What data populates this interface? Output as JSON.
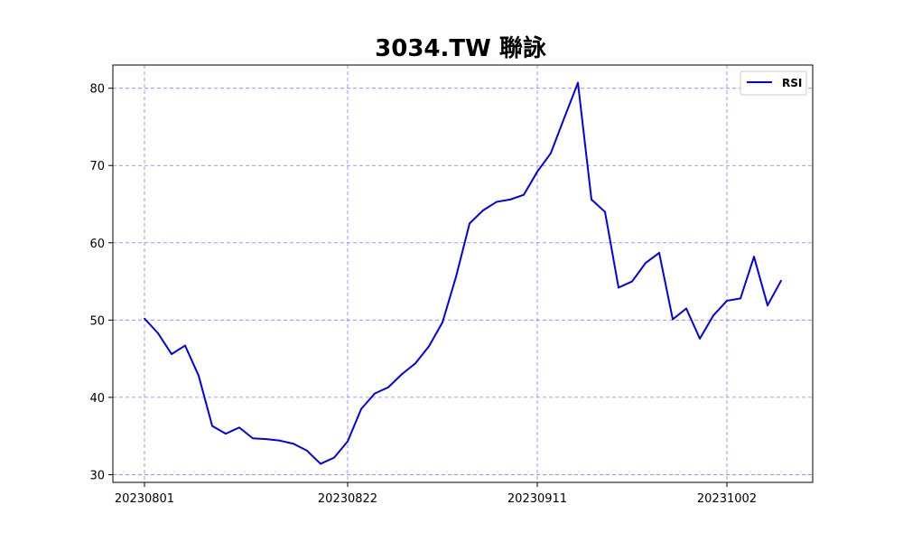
{
  "chart_data": {
    "type": "line",
    "title": "3034.TW 聯詠",
    "xlabel": "",
    "ylabel": "",
    "x_tick_labels": [
      "20230801",
      "20230822",
      "20230911",
      "20231002"
    ],
    "y_ticks": [
      30,
      40,
      50,
      60,
      70,
      80
    ],
    "ylim": [
      29,
      83
    ],
    "grid": true,
    "legend_position": "top-right",
    "colors": {
      "line": "#0000ee",
      "grid": "#8080ff"
    },
    "x": [
      "20230801",
      "20230802",
      "20230803",
      "20230804",
      "20230807",
      "20230808",
      "20230809",
      "20230810",
      "20230811",
      "20230814",
      "20230815",
      "20230816",
      "20230817",
      "20230818",
      "20230821",
      "20230822",
      "20230823",
      "20230824",
      "20230825",
      "20230828",
      "20230829",
      "20230830",
      "20230831",
      "20230901",
      "20230904",
      "20230905",
      "20230906",
      "20230907",
      "20230908",
      "20230911",
      "20230912",
      "20230913",
      "20230914",
      "20230915",
      "20230918",
      "20230919",
      "20230920",
      "20230921",
      "20230922",
      "20230925",
      "20230926",
      "20230927",
      "20230928",
      "20231002",
      "20231003",
      "20231004",
      "20231005",
      "20231006"
    ],
    "series": [
      {
        "name": "RSI",
        "values": [
          50.2,
          48.3,
          45.6,
          46.7,
          42.8,
          36.3,
          35.3,
          36.1,
          34.7,
          34.6,
          34.4,
          34.0,
          33.1,
          31.4,
          32.2,
          34.3,
          38.5,
          40.5,
          41.3,
          43.0,
          44.4,
          46.6,
          49.7,
          55.6,
          62.5,
          64.2,
          65.3,
          65.6,
          66.2,
          69.2,
          71.6,
          76.2,
          80.7,
          65.6,
          64.0,
          54.2,
          55.0,
          57.4,
          58.7,
          50.1,
          51.5,
          47.6,
          50.6,
          52.5,
          52.8,
          58.2,
          51.9,
          55.1
        ]
      }
    ]
  }
}
